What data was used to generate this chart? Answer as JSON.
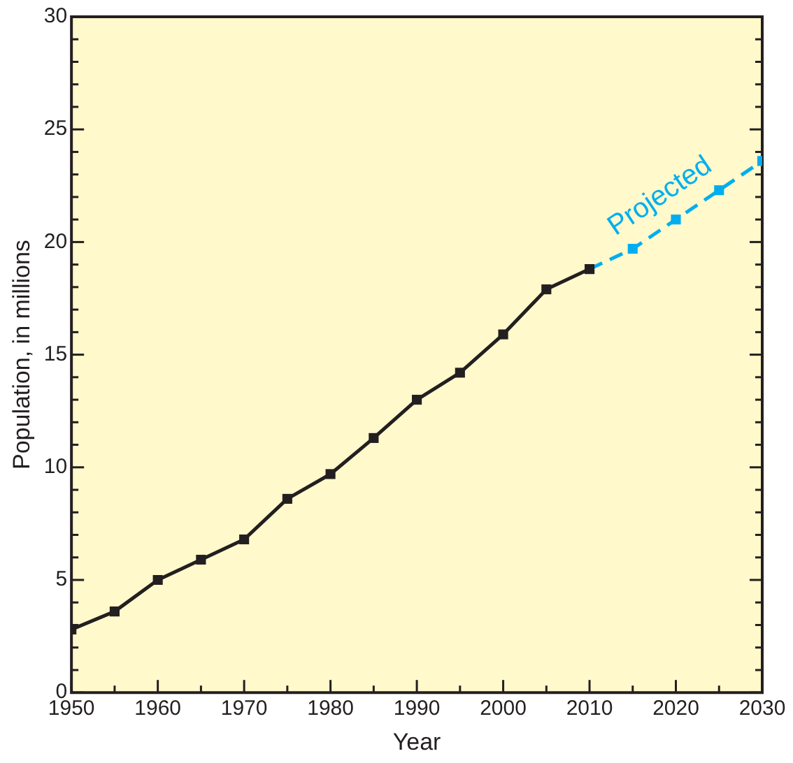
{
  "chart_data": {
    "type": "line",
    "xlabel": "Year",
    "ylabel": "Population, in millions",
    "xlim": [
      1950,
      2030
    ],
    "ylim": [
      0,
      30
    ],
    "xticks": [
      1950,
      {
        "value": 1955,
        "label": null
      },
      1960,
      {
        "value": 1965,
        "label": null
      },
      1970,
      {
        "value": 1975,
        "label": null
      },
      1980,
      {
        "value": 1985,
        "label": null
      },
      1990,
      {
        "value": 1995,
        "label": null
      },
      2000,
      {
        "value": 2005,
        "label": null
      },
      2010,
      {
        "value": 2015,
        "label": null
      },
      2020,
      {
        "value": 2025,
        "label": null
      },
      2030
    ],
    "yticks": [
      0,
      {
        "value": 1,
        "label": null
      },
      {
        "value": 2,
        "label": null
      },
      {
        "value": 3,
        "label": null
      },
      {
        "value": 4,
        "label": null
      },
      5,
      {
        "value": 6,
        "label": null
      },
      {
        "value": 7,
        "label": null
      },
      {
        "value": 8,
        "label": null
      },
      {
        "value": 9,
        "label": null
      },
      10,
      {
        "value": 11,
        "label": null
      },
      {
        "value": 12,
        "label": null
      },
      {
        "value": 13,
        "label": null
      },
      {
        "value": 14,
        "label": null
      },
      15,
      {
        "value": 16,
        "label": null
      },
      {
        "value": 17,
        "label": null
      },
      {
        "value": 18,
        "label": null
      },
      {
        "value": 19,
        "label": null
      },
      20,
      {
        "value": 21,
        "label": null
      },
      {
        "value": 22,
        "label": null
      },
      {
        "value": 23,
        "label": null
      },
      {
        "value": 24,
        "label": null
      },
      25,
      {
        "value": 26,
        "label": null
      },
      {
        "value": 27,
        "label": null
      },
      {
        "value": 28,
        "label": null
      },
      {
        "value": 29,
        "label": null
      },
      30
    ],
    "legend": false,
    "marker": "square",
    "series": [
      {
        "color": "#231f20",
        "line_style": "solid",
        "x": [
          1950,
          1955,
          1960,
          1965,
          1970,
          1975,
          1980,
          1985,
          1990,
          1995,
          2000,
          2005,
          2010
        ],
        "values": [
          2.8,
          3.6,
          5.0,
          5.9,
          6.8,
          8.6,
          9.7,
          11.3,
          13.0,
          14.2,
          15.9,
          17.9,
          18.8
        ]
      },
      {
        "name": "Projected",
        "color": "#00aeef",
        "line_style": "dashed",
        "x": [
          2010,
          2015,
          2020,
          2025,
          2030
        ],
        "values": [
          18.8,
          19.7,
          21.0,
          22.3,
          23.6
        ]
      }
    ]
  }
}
